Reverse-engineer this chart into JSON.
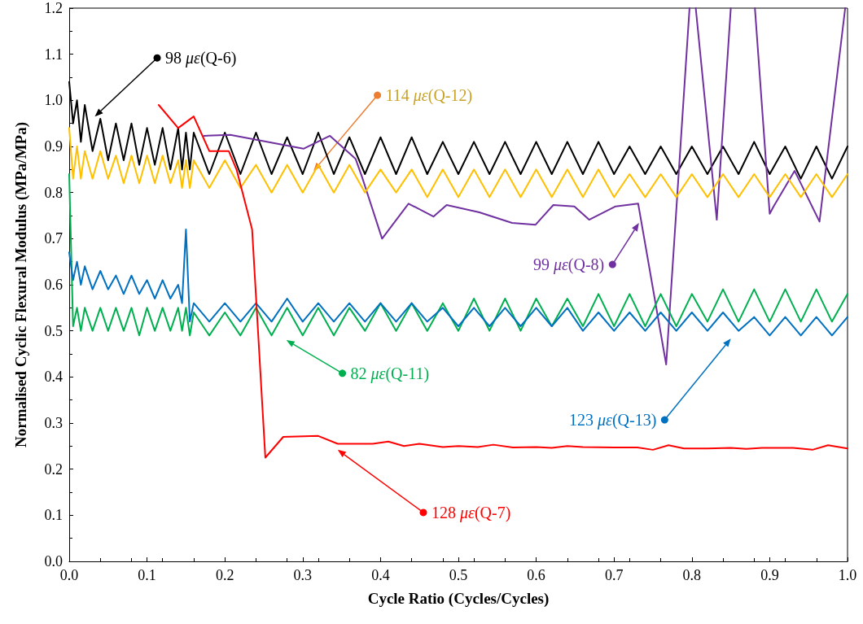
{
  "chart_data": {
    "type": "line",
    "xlabel": "Cycle Ratio (Cycles/Cycles)",
    "ylabel": "Normalised Cyclic Flexural Modulus (MPa/MPa)",
    "xlim": [
      0,
      1
    ],
    "ylim": [
      0,
      1.2
    ],
    "xticks": [
      {
        "value": 0,
        "label": "0.0"
      },
      {
        "value": 0.1,
        "label": "0.1"
      },
      {
        "value": 0.2,
        "label": "0.2"
      },
      {
        "value": 0.3,
        "label": "0.3"
      },
      {
        "value": 0.4,
        "label": "0.4"
      },
      {
        "value": 0.5,
        "label": "0.5"
      },
      {
        "value": 0.6,
        "label": "0.6"
      },
      {
        "value": 0.7,
        "label": "0.7"
      },
      {
        "value": 0.8,
        "label": "0.8"
      },
      {
        "value": 0.9,
        "label": "0.9"
      },
      {
        "value": 1,
        "label": "1.0"
      }
    ],
    "yticks": [
      {
        "value": 0,
        "label": "0.0"
      },
      {
        "value": 0.1,
        "label": "0.1"
      },
      {
        "value": 0.2,
        "label": "0.2"
      },
      {
        "value": 0.3,
        "label": "0.3"
      },
      {
        "value": 0.4,
        "label": "0.4"
      },
      {
        "value": 0.5,
        "label": "0.5"
      },
      {
        "value": 0.6,
        "label": "0.6"
      },
      {
        "value": 0.7,
        "label": "0.7"
      },
      {
        "value": 0.8,
        "label": "0.8"
      },
      {
        "value": 0.9,
        "label": "0.9"
      },
      {
        "value": 1,
        "label": "1.0"
      },
      {
        "value": 1.1,
        "label": "1.1"
      },
      {
        "value": 1.2,
        "label": "1.2"
      }
    ],
    "x": [
      0,
      0.005,
      0.01,
      0.015,
      0.02,
      0.03,
      0.04,
      0.05,
      0.06,
      0.07,
      0.08,
      0.09,
      0.1,
      0.11,
      0.12,
      0.13,
      0.14,
      0.145,
      0.15,
      0.155,
      0.16,
      0.18,
      0.2,
      0.22,
      0.24,
      0.26,
      0.28,
      0.3,
      0.32,
      0.34,
      0.36,
      0.38,
      0.4,
      0.42,
      0.44,
      0.46,
      0.48,
      0.5,
      0.52,
      0.54,
      0.56,
      0.58,
      0.6,
      0.62,
      0.64,
      0.66,
      0.68,
      0.7,
      0.72,
      0.74,
      0.76,
      0.78,
      0.8,
      0.82,
      0.84,
      0.86,
      0.88,
      0.9,
      0.92,
      0.94,
      0.96,
      0.98,
      1
    ],
    "grid": false,
    "legend": "bottom left",
    "marker": "none",
    "line_style": "solid",
    "series": [
      {
        "name": "98 με(Q-6)",
        "color": "#000000",
        "values": [
          1.04,
          0.95,
          1.0,
          0.91,
          0.99,
          0.89,
          0.96,
          0.87,
          0.95,
          0.87,
          0.95,
          0.86,
          0.94,
          0.86,
          0.94,
          0.85,
          0.94,
          0.85,
          0.93,
          0.85,
          0.93,
          0.84,
          0.93,
          0.84,
          0.93,
          0.84,
          0.92,
          0.84,
          0.93,
          0.84,
          0.92,
          0.84,
          0.92,
          0.84,
          0.92,
          0.84,
          0.91,
          0.84,
          0.91,
          0.84,
          0.91,
          0.84,
          0.91,
          0.84,
          0.91,
          0.84,
          0.91,
          0.84,
          0.9,
          0.84,
          0.9,
          0.84,
          0.9,
          0.84,
          0.9,
          0.84,
          0.91,
          0.84,
          0.9,
          0.83,
          0.9,
          0.83,
          0.9
        ]
      },
      {
        "name": "99 με(Q-8)",
        "color": "#7030a0",
        "x": [
          0.173,
          0.207,
          0.301,
          0.335,
          0.368,
          0.376,
          0.402,
          0.436,
          0.468,
          0.485,
          0.527,
          0.569,
          0.599,
          0.622,
          0.649,
          0.668,
          0.702,
          0.731,
          0.767,
          0.797,
          0.8,
          0.805,
          0.832,
          0.85,
          0.86,
          0.881,
          0.9,
          0.905,
          0.932,
          0.937,
          0.964,
          0.997
        ],
        "values": [
          0.923,
          0.925,
          0.895,
          0.923,
          0.873,
          0.835,
          0.7,
          0.776,
          0.748,
          0.773,
          0.757,
          0.734,
          0.73,
          0.773,
          0.77,
          0.741,
          0.77,
          0.776,
          0.427,
          1.2,
          null,
          1.2,
          0.741,
          1.2,
          null,
          1.2,
          0.754,
          0.77,
          0.847,
          0.83,
          0.737,
          1.2
        ]
      },
      {
        "name": "114 με(Q-12)",
        "color": "#ffc000",
        "values": [
          0.94,
          0.83,
          0.9,
          0.83,
          0.89,
          0.83,
          0.89,
          0.83,
          0.88,
          0.82,
          0.88,
          0.82,
          0.88,
          0.82,
          0.88,
          0.82,
          0.87,
          0.81,
          0.87,
          0.81,
          0.87,
          0.81,
          0.87,
          0.81,
          0.86,
          0.8,
          0.86,
          0.8,
          0.86,
          0.8,
          0.86,
          0.8,
          0.85,
          0.8,
          0.85,
          0.79,
          0.85,
          0.79,
          0.85,
          0.79,
          0.85,
          0.79,
          0.85,
          0.79,
          0.85,
          0.79,
          0.85,
          0.79,
          0.84,
          0.79,
          0.84,
          0.79,
          0.84,
          0.79,
          0.84,
          0.79,
          0.84,
          0.79,
          0.84,
          0.79,
          0.84,
          0.79,
          0.84
        ]
      },
      {
        "name": "82 με(Q-11)",
        "color": "#00b050",
        "values": [
          0.84,
          0.51,
          0.55,
          0.5,
          0.55,
          0.5,
          0.55,
          0.5,
          0.55,
          0.5,
          0.55,
          0.49,
          0.55,
          0.5,
          0.55,
          0.5,
          0.55,
          0.5,
          0.55,
          0.49,
          0.54,
          0.49,
          0.54,
          0.49,
          0.55,
          0.49,
          0.55,
          0.49,
          0.55,
          0.49,
          0.55,
          0.5,
          0.56,
          0.5,
          0.56,
          0.5,
          0.56,
          0.5,
          0.57,
          0.5,
          0.57,
          0.5,
          0.57,
          0.51,
          0.57,
          0.51,
          0.58,
          0.51,
          0.58,
          0.51,
          0.58,
          0.51,
          0.58,
          0.52,
          0.59,
          0.52,
          0.59,
          0.52,
          0.59,
          0.52,
          0.59,
          0.52,
          0.58
        ]
      },
      {
        "name": "123 με(Q-13)",
        "color": "#0070c0",
        "values": [
          0.67,
          0.61,
          0.65,
          0.6,
          0.64,
          0.59,
          0.63,
          0.59,
          0.62,
          0.58,
          0.62,
          0.58,
          0.61,
          0.57,
          0.61,
          0.57,
          0.6,
          0.56,
          0.72,
          0.52,
          0.56,
          0.52,
          0.56,
          0.52,
          0.56,
          0.52,
          0.57,
          0.52,
          0.56,
          0.52,
          0.56,
          0.52,
          0.56,
          0.52,
          0.56,
          0.52,
          0.55,
          0.51,
          0.55,
          0.51,
          0.55,
          0.51,
          0.55,
          0.51,
          0.55,
          0.5,
          0.54,
          0.5,
          0.54,
          0.5,
          0.54,
          0.5,
          0.54,
          0.5,
          0.54,
          0.5,
          0.53,
          0.49,
          0.53,
          0.49,
          0.53,
          0.49,
          0.53
        ]
      },
      {
        "name": "128 με(Q-7)",
        "color": "#ff0000",
        "x": [
          0.115,
          0.14,
          0.16,
          0.18,
          0.205,
          0.215,
          0.235,
          0.252,
          0.275,
          0.32,
          0.345,
          0.39,
          0.41,
          0.43,
          0.45,
          0.48,
          0.5,
          0.525,
          0.545,
          0.57,
          0.6,
          0.62,
          0.64,
          0.66,
          0.7,
          0.73,
          0.75,
          0.77,
          0.79,
          0.82,
          0.85,
          0.87,
          0.89,
          0.93,
          0.955,
          0.975,
          1.0
        ],
        "values": [
          0.99,
          0.94,
          0.965,
          0.89,
          0.89,
          0.85,
          0.72,
          0.225,
          0.27,
          0.272,
          0.255,
          0.255,
          0.26,
          0.25,
          0.255,
          0.248,
          0.25,
          0.248,
          0.253,
          0.247,
          0.248,
          0.246,
          0.25,
          0.248,
          0.247,
          0.247,
          0.242,
          0.252,
          0.245,
          0.245,
          0.246,
          0.244,
          0.246,
          0.246,
          0.242,
          0.252,
          0.245
        ]
      }
    ]
  }
}
